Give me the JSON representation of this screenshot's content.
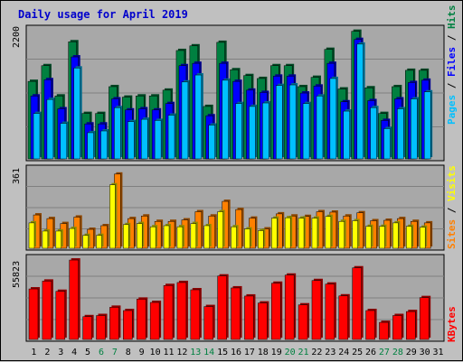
{
  "title": "Daily usage for April 2019",
  "colors": {
    "hits": "#008040",
    "files": "#0000ff",
    "pages": "#00c0ff",
    "visits": "#ffff00",
    "sites": "#ff8000",
    "kbytes": "#ff0000",
    "weekday": "#000000",
    "weekend": "#008040"
  },
  "labels": {
    "pages": "Pages",
    "files": "Files",
    "hits": "Hits",
    "sites": "Sites",
    "visits": "Visits",
    "kbytes": "KBytes",
    "sep": " / "
  },
  "chart_data": {
    "type": "bar",
    "x": [
      1,
      2,
      3,
      4,
      5,
      6,
      7,
      8,
      9,
      10,
      11,
      12,
      13,
      14,
      15,
      16,
      17,
      18,
      19,
      20,
      21,
      22,
      23,
      24,
      25,
      26,
      27,
      28,
      29,
      30,
      31
    ],
    "weekend_days": [
      6,
      7,
      13,
      14,
      20,
      21,
      27,
      28
    ],
    "panels": [
      {
        "id": "top",
        "ymax_label": "2200",
        "ylim": [
          0,
          2200
        ],
        "series": [
          {
            "name": "Hits",
            "values": [
              1330,
              1600,
              1080,
              2010,
              780,
              780,
              1240,
              1060,
              1080,
              1080,
              1180,
              1860,
              1940,
              900,
              2000,
              1530,
              1430,
              1380,
              1600,
              1600,
              1240,
              1400,
              1880,
              1200,
              2190,
              1220,
              780,
              1240,
              1520,
              1520,
              0
            ]
          },
          {
            "name": "Files",
            "values": [
              1080,
              1360,
              860,
              1750,
              600,
              600,
              1030,
              840,
              860,
              840,
              950,
              1600,
              1640,
              740,
              1640,
              1330,
              1180,
              1140,
              1420,
              1420,
              1130,
              1250,
              1640,
              980,
              2050,
              1000,
              660,
              1030,
              1310,
              1350,
              0
            ]
          },
          {
            "name": "Pages",
            "values": [
              780,
              1020,
              610,
              1560,
              450,
              480,
              880,
              640,
              680,
              660,
              750,
              1320,
              1440,
              580,
              1350,
              950,
              900,
              960,
              1260,
              1270,
              950,
              1080,
              1380,
              820,
              1970,
              880,
              520,
              860,
              1030,
              1150,
              0
            ]
          }
        ]
      },
      {
        "id": "middle",
        "ymax_label": "361",
        "ylim": [
          0,
          361
        ],
        "series": [
          {
            "name": "Visits",
            "values": [
              118,
              80,
              80,
              92,
              60,
              60,
              295,
              110,
              115,
              100,
              105,
              100,
              115,
              105,
              170,
              100,
              90,
              82,
              140,
              142,
              140,
              140,
              148,
              125,
              128,
              102,
              102,
              118,
              102,
              98,
              0
            ]
          },
          {
            "name": "Sites",
            "values": [
              155,
              138,
              115,
              145,
              88,
              105,
              345,
              138,
              150,
              125,
              125,
              132,
              170,
              150,
              218,
              180,
              140,
              90,
              160,
              150,
              148,
              170,
              168,
              150,
              165,
              128,
              130,
              138,
              125,
              118,
              0
            ]
          }
        ]
      },
      {
        "id": "bottom",
        "ymax_label": "55823",
        "ylim": [
          0,
          55823
        ],
        "series": [
          {
            "name": "KBytes",
            "values": [
              35500,
              41000,
              33800,
              55800,
              16000,
              16800,
              22600,
              20300,
              28300,
              26000,
              37900,
              40000,
              34900,
              23100,
              44600,
              36200,
              30500,
              25600,
              39500,
              45200,
              24300,
              41400,
              38900,
              30600,
              50300,
              20300,
              12000,
              16800,
              19600,
              29400,
              0
            ]
          }
        ]
      }
    ]
  }
}
